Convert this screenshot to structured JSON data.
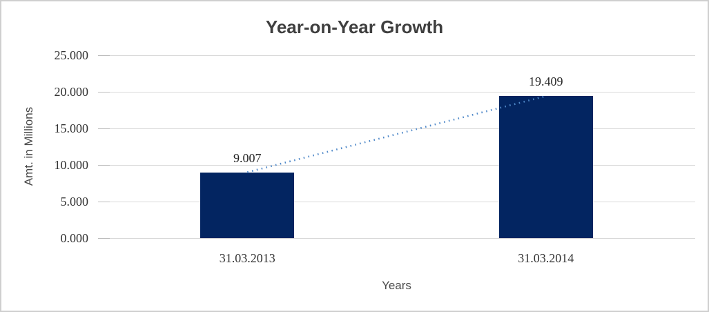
{
  "chart_data": {
    "type": "bar",
    "title": "Year-on-Year Growth",
    "xlabel": "Years",
    "ylabel": "Amt. in Millions",
    "categories": [
      "31.03.2013",
      "31.03.2014"
    ],
    "values": [
      9.007,
      19.409
    ],
    "data_labels": [
      "9.007",
      "19.409"
    ],
    "yticks": [
      "25.000",
      "20.000",
      "15.000",
      "10.000",
      "5.000",
      "0.000"
    ],
    "ylim": [
      0,
      25
    ],
    "grid": true,
    "legend": "none",
    "bar_color": "#032561",
    "trendline": {
      "style": "dotted",
      "color": "#5089c9",
      "from_value": 9.007,
      "to_value": 19.409
    },
    "frame_border_color": "#cfcfcf",
    "gridline_color": "#d9d9d9"
  }
}
